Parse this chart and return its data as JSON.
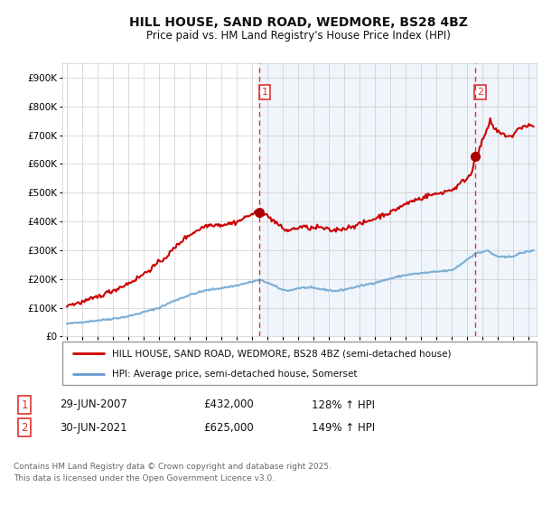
{
  "title": "HILL HOUSE, SAND ROAD, WEDMORE, BS28 4BZ",
  "subtitle": "Price paid vs. HM Land Registry's House Price Index (HPI)",
  "title_fontsize": 10,
  "subtitle_fontsize": 8.5,
  "background_color": "#ffffff",
  "plot_bg_color": "#ffffff",
  "grid_color": "#cccccc",
  "shade_color": "#ddeeff",
  "ylim": [
    0,
    950000
  ],
  "yticks": [
    0,
    100000,
    200000,
    300000,
    400000,
    500000,
    600000,
    700000,
    800000,
    900000
  ],
  "ytick_labels": [
    "£0",
    "£100K",
    "£200K",
    "£300K",
    "£400K",
    "£500K",
    "£600K",
    "£700K",
    "£800K",
    "£900K"
  ],
  "xlim_start": 1994.7,
  "xlim_end": 2025.5,
  "xtick_years": [
    1995,
    1996,
    1997,
    1998,
    1999,
    2000,
    2001,
    2002,
    2003,
    2004,
    2005,
    2006,
    2007,
    2008,
    2009,
    2010,
    2011,
    2012,
    2013,
    2014,
    2015,
    2016,
    2017,
    2018,
    2019,
    2020,
    2021,
    2022,
    2023,
    2024,
    2025
  ],
  "vline1_x": 2007.49,
  "vline2_x": 2021.49,
  "vline_color": "#dd3333",
  "vline_style": "--",
  "marker1_x": 2007.49,
  "marker1_y": 432000,
  "marker2_x": 2021.49,
  "marker2_y": 625000,
  "marker_color": "#aa0000",
  "marker_size": 7,
  "legend_line1_color": "#cc0000",
  "legend_line2_color": "#6699cc",
  "legend_label1": "HILL HOUSE, SAND ROAD, WEDMORE, BS28 4BZ (semi-detached house)",
  "legend_label2": "HPI: Average price, semi-detached house, Somerset",
  "sale1_label": "1",
  "sale1_date": "29-JUN-2007",
  "sale1_price": "£432,000",
  "sale1_hpi": "128% ↑ HPI",
  "sale2_label": "2",
  "sale2_date": "30-JUN-2021",
  "sale2_price": "£625,000",
  "sale2_hpi": "149% ↑ HPI",
  "footnote": "Contains HM Land Registry data © Crown copyright and database right 2025.\nThis data is licensed under the Open Government Licence v3.0.",
  "hpi_color": "#7aaed6",
  "house_color": "#cc0000",
  "label_box_color": "#dd3333"
}
